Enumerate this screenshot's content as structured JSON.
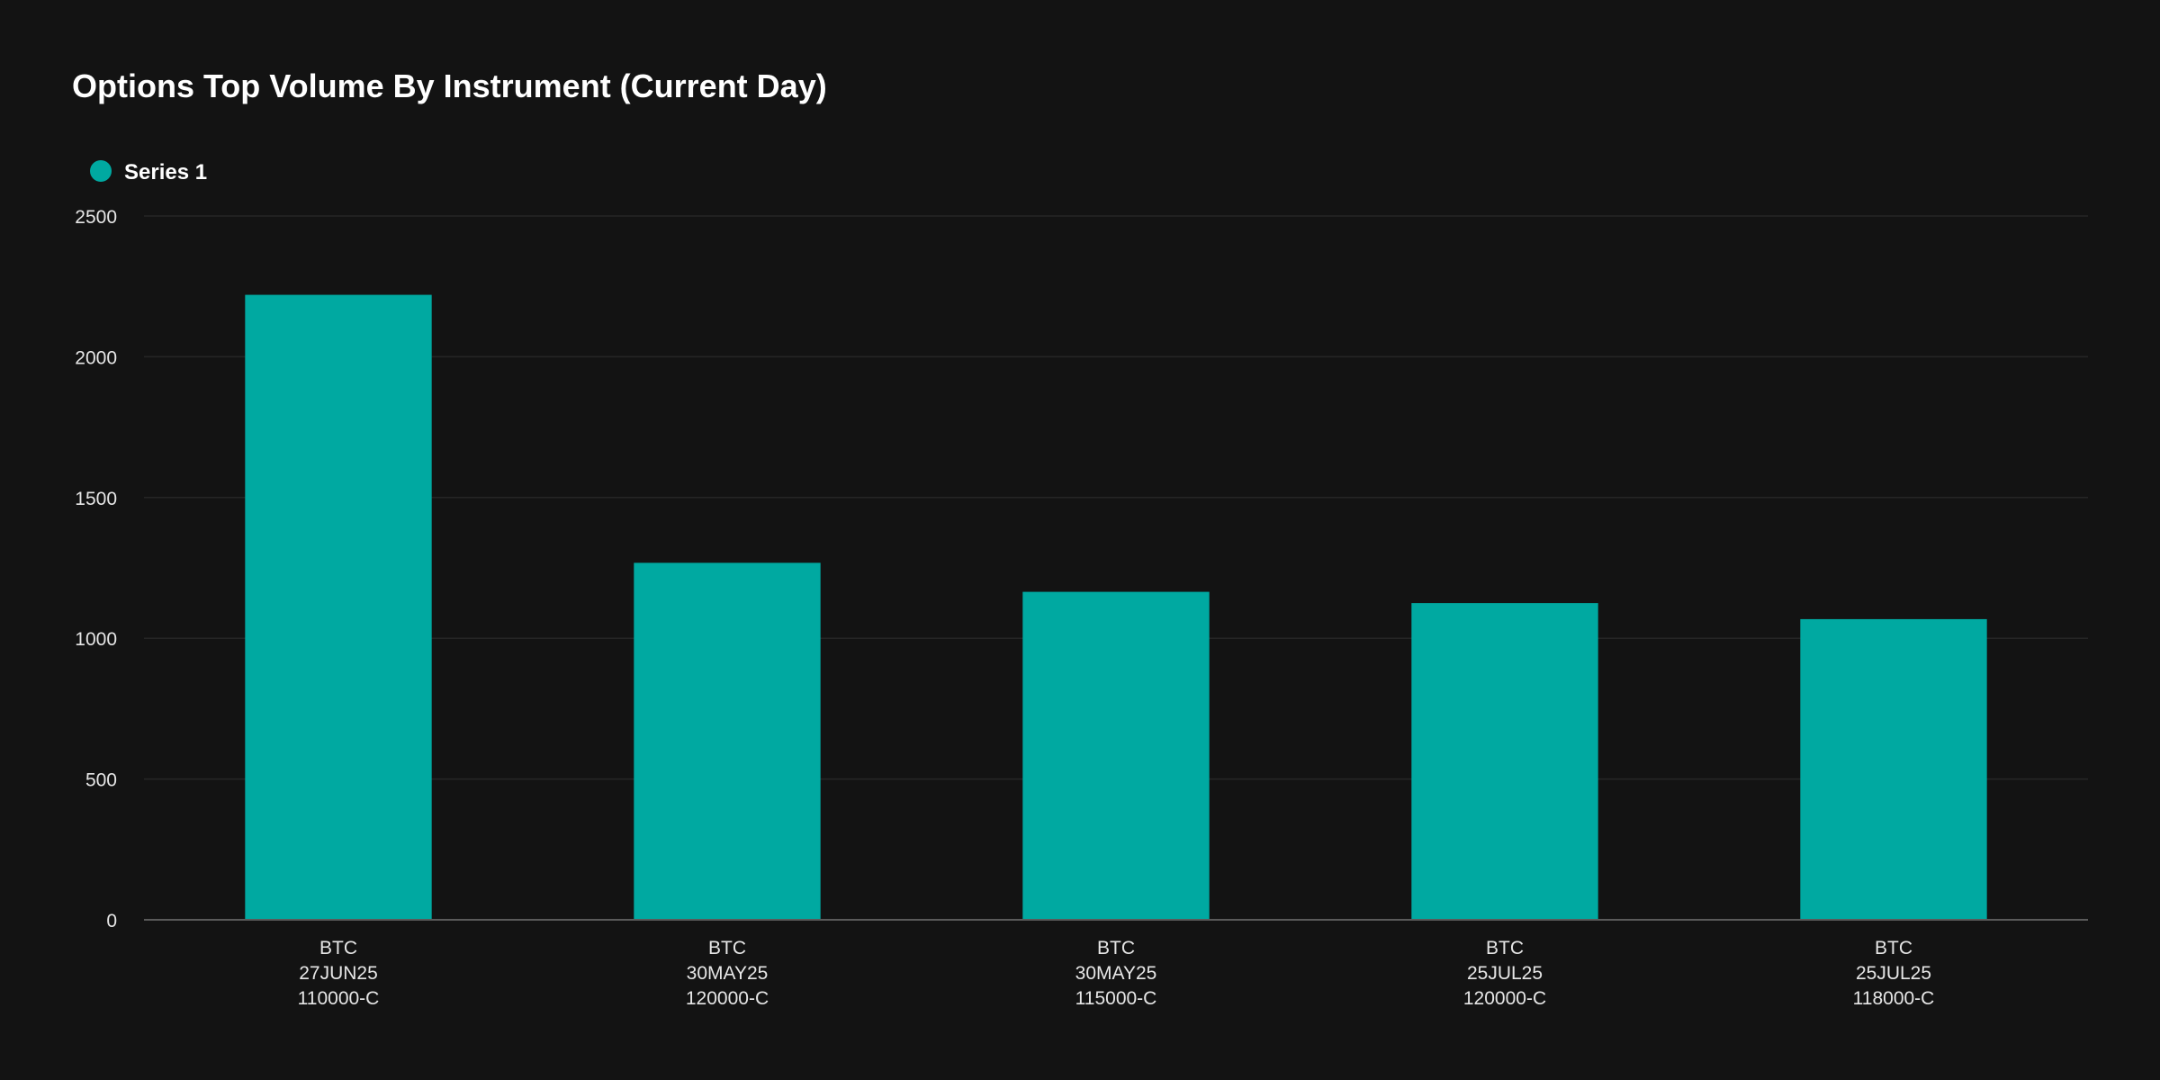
{
  "chart_data": {
    "type": "bar",
    "title": "Options Top Volume By Instrument (Current Day)",
    "xlabel": "",
    "ylabel": "",
    "categories": [
      [
        "BTC",
        "27JUN25",
        "110000-C"
      ],
      [
        "BTC",
        "30MAY25",
        "120000-C"
      ],
      [
        "BTC",
        "30MAY25",
        "115000-C"
      ],
      [
        "BTC",
        "25JUL25",
        "120000-C"
      ],
      [
        "BTC",
        "25JUL25",
        "118000-C"
      ]
    ],
    "series": [
      {
        "name": "Series 1",
        "values": [
          2220,
          1268,
          1165,
          1125,
          1068
        ],
        "color": "#00a9a1"
      }
    ],
    "ylim": [
      0,
      2500
    ],
    "yticks": [
      0,
      500,
      1000,
      1500,
      2000,
      2500
    ],
    "grid": true,
    "legend_position": "top-left"
  }
}
